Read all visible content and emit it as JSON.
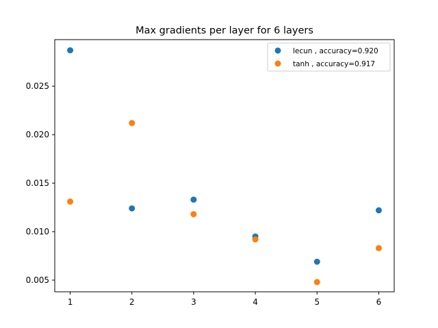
{
  "chart_data": {
    "type": "scatter",
    "title": "Max gradients per layer for 6 layers",
    "xlabel": "",
    "ylabel": "",
    "x_ticks": [
      "1",
      "2",
      "3",
      "4",
      "5",
      "6"
    ],
    "y_ticks": [
      "0.005",
      "0.010",
      "0.015",
      "0.020",
      "0.025"
    ],
    "xlim": [
      0.75,
      6.25
    ],
    "ylim": [
      0.0038,
      0.0298
    ],
    "grid": false,
    "legend_position": "top-right",
    "series": [
      {
        "name": "lecun , accuracy=0.920",
        "color": "#1f77b4",
        "x": [
          1,
          2,
          3,
          4,
          5,
          6
        ],
        "y": [
          0.0287,
          0.0124,
          0.0133,
          0.0095,
          0.0069,
          0.0122
        ]
      },
      {
        "name": "tanh , accuracy=0.917",
        "color": "#ff7f0e",
        "x": [
          1,
          2,
          3,
          4,
          5,
          6
        ],
        "y": [
          0.0131,
          0.0212,
          0.0118,
          0.0092,
          0.0048,
          0.0083
        ]
      }
    ]
  }
}
